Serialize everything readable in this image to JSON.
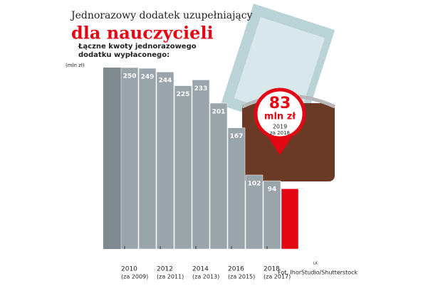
{
  "chart_data": {
    "type": "bar",
    "title": "Jednorazowy dodatek uzupełniający",
    "subtitle": "dla nauczycieli",
    "description": [
      "Łączne kwoty jednorazowego",
      "dodatku wypłaconego:"
    ],
    "unit_label": "(mln zł)",
    "categories": [
      "2010",
      null,
      "2012",
      null,
      "2014",
      null,
      "2016",
      null,
      "2018",
      "2019"
    ],
    "category_notes": [
      "(za 2009)",
      null,
      "(za 2011)",
      null,
      "(za 2013)",
      null,
      "(za 2015)",
      null,
      "(za 2017)",
      "za 2018"
    ],
    "values": [
      250,
      249,
      244,
      225,
      233,
      201,
      167,
      102,
      94,
      83
    ],
    "color": "#9aa5ab",
    "highlight_color": "#e30613",
    "callout_unit": "mln zł",
    "credit": "Fot. IhorStudio/Shutterstock",
    "author": "LK"
  }
}
